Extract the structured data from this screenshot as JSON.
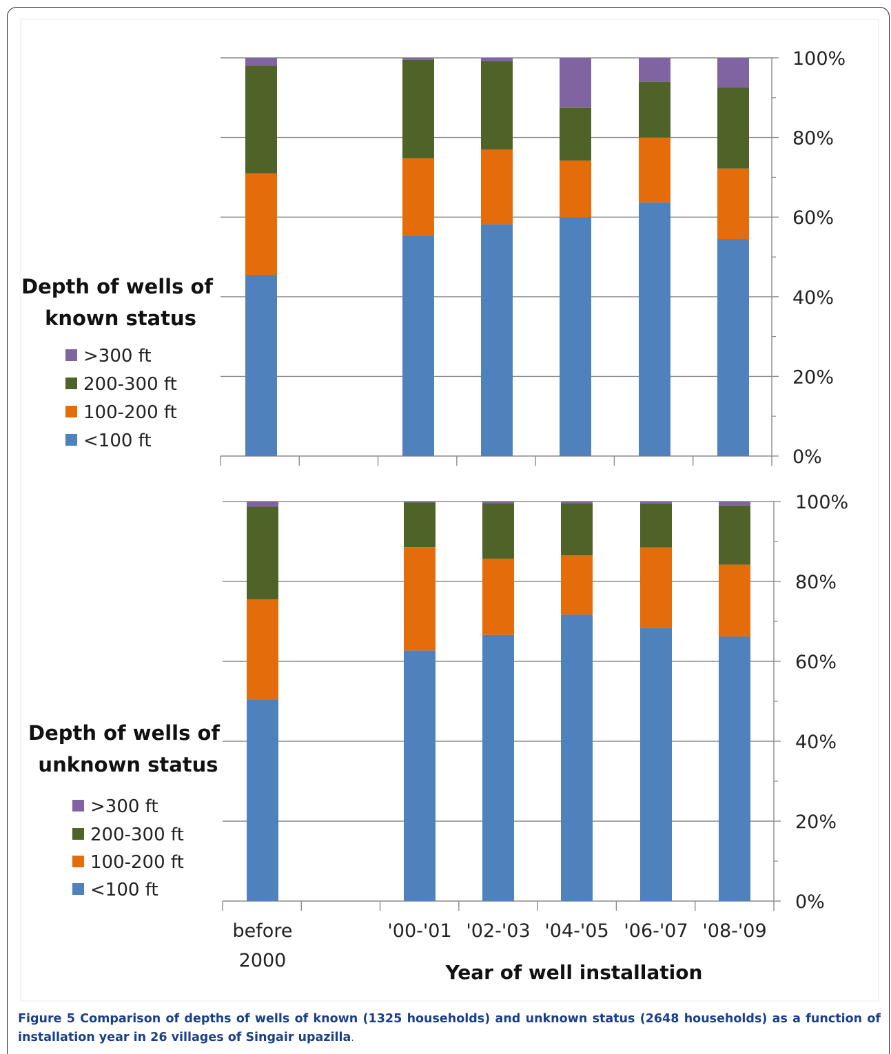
{
  "colors": {
    "lt100": "#4f81bd",
    "100to200": "#e46c0a",
    "200to300": "#4f6228",
    "gt300": "#8064a2"
  },
  "chart_data": [
    {
      "type": "bar",
      "stacked": true,
      "title": "Depth of wells of known status",
      "categories": [
        "before 2000",
        "",
        "'00-'01",
        "'02-'03",
        "'04-'05",
        "'06-'07",
        "'08-'09"
      ],
      "ylim": [
        0,
        100
      ],
      "yticks": [
        "0%",
        "20%",
        "40%",
        "60%",
        "80%",
        "100%"
      ],
      "ylabel_side": "right",
      "grid": true,
      "series": [
        {
          "name": "<100 ft",
          "color_key": "lt100",
          "values": [
            45.5,
            null,
            55.5,
            58.2,
            60.0,
            63.7,
            54.5
          ]
        },
        {
          "name": "100-200 ft",
          "color_key": "100to200",
          "values": [
            25.5,
            null,
            19.3,
            18.8,
            14.2,
            16.3,
            17.7
          ]
        },
        {
          "name": "200-300 ft",
          "color_key": "200to300",
          "values": [
            27.0,
            null,
            24.7,
            22.2,
            13.2,
            14.0,
            20.4
          ]
        },
        {
          "name": ">300 ft",
          "color_key": "gt300",
          "values": [
            2.0,
            null,
            0.5,
            0.8,
            12.6,
            6.0,
            7.4
          ]
        }
      ]
    },
    {
      "type": "bar",
      "stacked": true,
      "title": "Depth of wells of unknown status",
      "categories": [
        "before 2000",
        "",
        "'00-'01",
        "'02-'03",
        "'04-'05",
        "'06-'07",
        "'08-'09"
      ],
      "ylim": [
        0,
        100
      ],
      "yticks": [
        "0%",
        "20%",
        "40%",
        "60%",
        "80%",
        "100%"
      ],
      "ylabel_side": "right",
      "grid": true,
      "xlabel": "Year of well installation",
      "xtick_labels": [
        [
          "before",
          "2000"
        ],
        [
          ""
        ],
        [
          "'00-'01"
        ],
        [
          "'02-'03"
        ],
        [
          "'04-'05"
        ],
        [
          "'06-'07"
        ],
        [
          "'08-'09"
        ]
      ],
      "series": [
        {
          "name": "<100 ft",
          "color_key": "lt100",
          "values": [
            50.5,
            null,
            62.7,
            66.6,
            71.7,
            68.3,
            66.2
          ]
        },
        {
          "name": "100-200 ft",
          "color_key": "100to200",
          "values": [
            25.0,
            null,
            25.9,
            19.1,
            14.8,
            20.2,
            18.0
          ]
        },
        {
          "name": "200-300 ft",
          "color_key": "200to300",
          "values": [
            23.2,
            null,
            11.2,
            13.9,
            13.1,
            11.0,
            14.8
          ]
        },
        {
          "name": ">300 ft",
          "color_key": "gt300",
          "values": [
            1.3,
            null,
            0.2,
            0.4,
            0.4,
            0.5,
            1.0
          ]
        }
      ]
    }
  ],
  "caption": {
    "label": "Figure 5",
    "text": " Comparison of depths of wells of known (1325 households) and unknown status (2648 households) as a function of installation year in 26 villages of Singair upazilla",
    "end": "."
  }
}
